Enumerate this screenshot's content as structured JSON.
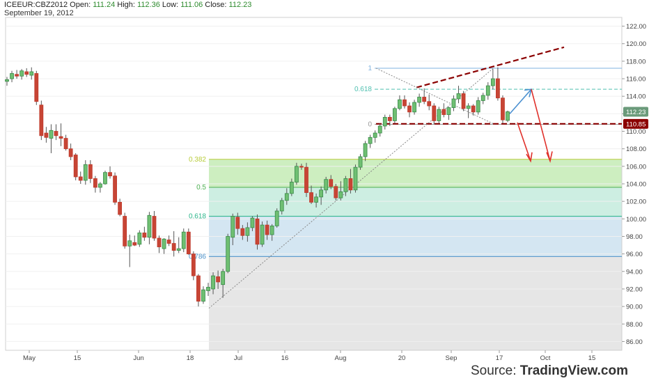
{
  "header": {
    "symbol": "ICEEUR:CBZ2012",
    "open_label": "Open:",
    "open_value": "111.24",
    "high_label": "High:",
    "high_value": "112.36",
    "low_label": "Low:",
    "low_value": "111.06",
    "close_label": "Close:",
    "close_value": "112.23",
    "date": "September 19, 2012"
  },
  "source": {
    "prefix": "Source:",
    "brand": "TradingView.com"
  },
  "chart_data": {
    "type": "candlestick",
    "ylim": [
      85,
      123
    ],
    "y_ticks": [
      "122.00",
      "120.00",
      "118.00",
      "116.00",
      "114.00",
      "112.00",
      "110.00",
      "108.00",
      "106.00",
      "104.00",
      "102.00",
      "100.00",
      "98.00",
      "96.00",
      "94.00",
      "92.00",
      "90.00",
      "88.00",
      "86.00"
    ],
    "x_ticks": [
      "May",
      "15",
      "Jun",
      "18",
      "Jul",
      "16",
      "Aug",
      "20",
      "Sep",
      "17",
      "Oct",
      "15"
    ],
    "price_badges": [
      {
        "label": "112.23",
        "value": 112.23,
        "color": "#6a9a7a"
      },
      {
        "label": "110.85",
        "value": 110.85,
        "color": "#8b0000"
      }
    ],
    "fib_top": {
      "levels": [
        {
          "label": "1",
          "value": 117.2,
          "color": "#7fb3e0"
        },
        {
          "label": "0.618",
          "value": 114.8,
          "color": "#4fc0b0"
        },
        {
          "label": "0",
          "value": 110.8,
          "color": "#999999"
        }
      ]
    },
    "fib_bottom": {
      "levels": [
        {
          "label": "0.382",
          "value": 106.8,
          "color": "#b8cc3a"
        },
        {
          "label": "0.5",
          "value": 103.6,
          "color": "#4caf50"
        },
        {
          "label": "0.618",
          "value": 100.3,
          "color": "#2bb58a"
        },
        {
          "label": "0.786",
          "value": 95.7,
          "color": "#4a90c8"
        }
      ],
      "zones": [
        {
          "from": 106.8,
          "to": 103.6,
          "color": "#cdeec0"
        },
        {
          "from": 103.6,
          "to": 100.3,
          "color": "#cdeee2"
        },
        {
          "from": 100.3,
          "to": 95.7,
          "color": "#d4e6f2"
        },
        {
          "from": 95.7,
          "to": 85.0,
          "color": "#e6e6e6"
        }
      ]
    },
    "candles": [
      [
        115.7,
        116.2,
        115.2,
        115.9
      ],
      [
        116.0,
        116.9,
        115.6,
        116.6
      ],
      [
        116.5,
        117.0,
        116.0,
        116.3
      ],
      [
        116.3,
        117.1,
        115.9,
        116.9
      ],
      [
        116.8,
        117.2,
        116.2,
        116.5
      ],
      [
        116.4,
        117.3,
        115.9,
        116.8
      ],
      [
        116.6,
        116.9,
        113.0,
        113.4
      ],
      [
        113.0,
        113.5,
        109.0,
        109.5
      ],
      [
        109.8,
        110.5,
        108.7,
        109.3
      ],
      [
        109.2,
        110.8,
        107.5,
        110.1
      ],
      [
        110.0,
        110.8,
        109.0,
        109.5
      ],
      [
        109.4,
        110.9,
        108.3,
        109.2
      ],
      [
        109.2,
        109.6,
        107.8,
        108.0
      ],
      [
        108.0,
        108.6,
        106.7,
        107.1
      ],
      [
        107.3,
        107.5,
        104.4,
        104.8
      ],
      [
        104.8,
        105.4,
        104.0,
        104.4
      ],
      [
        104.4,
        106.7,
        103.9,
        106.2
      ],
      [
        106.2,
        106.7,
        104.1,
        104.6
      ],
      [
        104.6,
        104.9,
        103.0,
        103.6
      ],
      [
        103.6,
        104.2,
        103.0,
        104.0
      ],
      [
        104.0,
        105.5,
        103.9,
        105.3
      ],
      [
        105.3,
        106.0,
        104.6,
        104.9
      ],
      [
        104.9,
        105.3,
        101.6,
        101.9
      ],
      [
        101.9,
        102.3,
        100.3,
        100.5
      ],
      [
        100.3,
        100.7,
        96.6,
        96.9
      ],
      [
        96.9,
        98.2,
        94.5,
        97.5
      ],
      [
        97.3,
        98.1,
        96.9,
        97.0
      ],
      [
        97.1,
        98.7,
        96.8,
        98.4
      ],
      [
        98.4,
        99.1,
        97.5,
        97.9
      ],
      [
        97.9,
        100.8,
        97.1,
        100.4
      ],
      [
        100.3,
        100.9,
        97.5,
        97.8
      ],
      [
        97.8,
        98.1,
        96.1,
        96.8
      ],
      [
        96.6,
        97.8,
        96.0,
        97.7
      ],
      [
        97.6,
        98.1,
        96.9,
        97.2
      ],
      [
        97.2,
        98.6,
        95.7,
        96.4
      ],
      [
        96.4,
        97.9,
        96.1,
        96.6
      ],
      [
        96.6,
        98.9,
        96.2,
        98.5
      ],
      [
        98.5,
        98.9,
        95.9,
        96.0
      ],
      [
        96.0,
        96.3,
        93.0,
        93.5
      ],
      [
        93.5,
        93.7,
        90.0,
        90.6
      ],
      [
        90.6,
        92.3,
        90.3,
        91.9
      ],
      [
        91.8,
        92.7,
        91.2,
        92.2
      ],
      [
        92.0,
        93.9,
        91.4,
        93.5
      ],
      [
        93.4,
        94.1,
        92.0,
        92.8
      ],
      [
        92.5,
        94.3,
        91.0,
        94.0
      ],
      [
        94.0,
        98.3,
        93.8,
        98.0
      ],
      [
        97.9,
        100.6,
        97.0,
        100.3
      ],
      [
        100.2,
        100.7,
        98.2,
        98.9
      ],
      [
        98.9,
        99.3,
        97.6,
        98.1
      ],
      [
        98.1,
        99.6,
        97.4,
        99.0
      ],
      [
        99.0,
        100.3,
        98.6,
        100.1
      ],
      [
        100.0,
        100.5,
        96.5,
        97.1
      ],
      [
        97.1,
        99.7,
        96.8,
        99.3
      ],
      [
        99.3,
        99.8,
        97.6,
        98.2
      ],
      [
        98.2,
        99.4,
        97.5,
        99.2
      ],
      [
        99.2,
        101.2,
        99.0,
        100.9
      ],
      [
        100.9,
        102.4,
        100.5,
        102.1
      ],
      [
        102.1,
        103.5,
        101.6,
        102.9
      ],
      [
        102.9,
        104.6,
        102.6,
        104.2
      ],
      [
        104.2,
        106.4,
        103.9,
        106.0
      ],
      [
        106.0,
        106.3,
        105.6,
        105.9
      ],
      [
        105.9,
        106.4,
        102.5,
        103.0
      ],
      [
        103.0,
        103.8,
        101.7,
        101.9
      ],
      [
        101.9,
        102.9,
        101.3,
        102.5
      ],
      [
        102.5,
        103.7,
        101.6,
        103.3
      ],
      [
        103.3,
        104.8,
        102.9,
        104.5
      ],
      [
        104.5,
        105.0,
        103.4,
        103.7
      ],
      [
        103.7,
        104.0,
        102.1,
        102.4
      ],
      [
        102.4,
        104.3,
        102.1,
        103.1
      ],
      [
        103.1,
        104.9,
        102.6,
        104.6
      ],
      [
        104.6,
        105.7,
        102.9,
        103.3
      ],
      [
        103.3,
        106.2,
        103.0,
        105.9
      ],
      [
        105.9,
        107.4,
        105.6,
        107.1
      ],
      [
        107.1,
        108.9,
        106.6,
        108.6
      ],
      [
        108.6,
        109.6,
        108.1,
        109.3
      ],
      [
        109.3,
        110.1,
        108.7,
        109.8
      ],
      [
        109.8,
        110.9,
        109.4,
        110.6
      ],
      [
        110.6,
        111.9,
        110.2,
        111.6
      ],
      [
        111.6,
        111.9,
        110.6,
        111.2
      ],
      [
        111.2,
        112.8,
        110.9,
        112.6
      ],
      [
        112.6,
        114.1,
        112.4,
        113.6
      ],
      [
        113.6,
        114.1,
        112.6,
        112.9
      ],
      [
        112.9,
        113.3,
        111.6,
        112.2
      ],
      [
        112.2,
        113.6,
        111.9,
        113.3
      ],
      [
        113.3,
        114.3,
        112.8,
        113.9
      ],
      [
        113.9,
        114.9,
        113.1,
        113.4
      ],
      [
        113.4,
        114.2,
        112.4,
        112.9
      ],
      [
        112.9,
        113.2,
        110.8,
        111.2
      ],
      [
        111.2,
        112.8,
        110.9,
        112.5
      ],
      [
        112.5,
        113.2,
        111.6,
        111.9
      ],
      [
        111.9,
        112.8,
        111.3,
        112.7
      ],
      [
        112.7,
        114.1,
        112.3,
        113.7
      ],
      [
        113.7,
        115.2,
        113.2,
        114.3
      ],
      [
        114.3,
        114.6,
        112.3,
        112.6
      ],
      [
        112.6,
        113.2,
        111.5,
        112.9
      ],
      [
        112.9,
        113.1,
        111.8,
        112.2
      ],
      [
        112.2,
        113.9,
        111.9,
        113.5
      ],
      [
        113.5,
        114.4,
        113.1,
        114.1
      ],
      [
        114.1,
        115.6,
        113.6,
        115.2
      ],
      [
        115.2,
        117.1,
        114.8,
        116.0
      ],
      [
        116.0,
        117.3,
        113.5,
        113.8
      ],
      [
        113.8,
        114.1,
        110.9,
        111.3
      ],
      [
        111.24,
        112.36,
        111.06,
        112.23
      ]
    ]
  }
}
